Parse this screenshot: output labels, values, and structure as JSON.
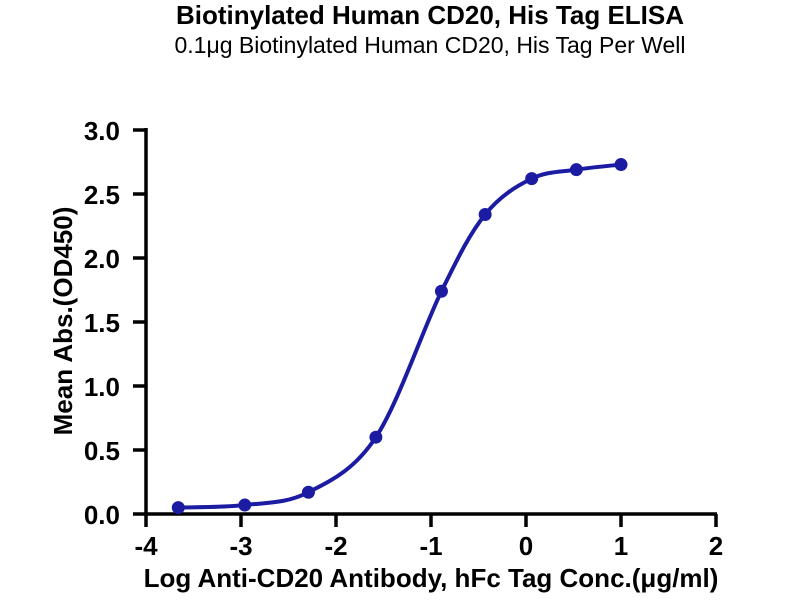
{
  "chart_data": {
    "type": "line",
    "title": "Biotinylated Human CD20, His Tag ELISA",
    "subtitle": "0.1μg Biotinylated Human CD20, His Tag Per Well",
    "xlabel": "Log Anti-CD20 Antibody, hFc Tag Conc.(μg/ml)",
    "ylabel": "Mean Abs.(OD450)",
    "xlim": [
      -4,
      2
    ],
    "ylim": [
      0,
      3
    ],
    "xticks": {
      "values": [
        -4,
        -3,
        -2,
        -1,
        0,
        1,
        2
      ],
      "labels": [
        "-4",
        "-3",
        "-2",
        "-1",
        "0",
        "1",
        "2"
      ]
    },
    "yticks": {
      "values": [
        0,
        0.5,
        1,
        1.5,
        2,
        2.5,
        3
      ],
      "labels": [
        "0.0",
        "0.5",
        "1.0",
        "1.5",
        "2.0",
        "2.5",
        "3.0"
      ]
    },
    "grid": false,
    "legend": false,
    "series": [
      {
        "x": [
          -3.66,
          -2.96,
          -2.29,
          -1.58,
          -0.89,
          -0.43,
          0.06,
          0.53,
          1.0
        ],
        "y": [
          0.05,
          0.07,
          0.17,
          0.6,
          1.74,
          2.34,
          2.62,
          2.69,
          2.73
        ],
        "color": "#1c1ca3",
        "marker": "circle",
        "line": "smooth"
      }
    ]
  },
  "colors": {
    "curve_blue": "#1c1ca3",
    "axis_black": "#000000",
    "background": "#ffffff"
  }
}
